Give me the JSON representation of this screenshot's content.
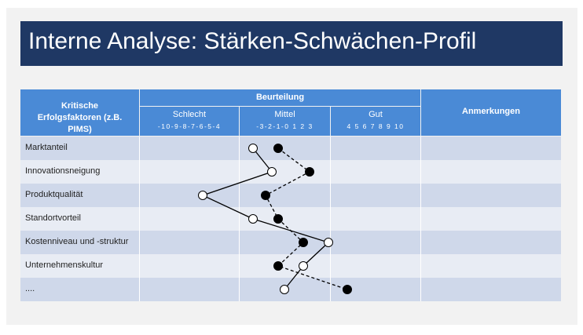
{
  "title": "Interne Analyse: Stärken-Schwächen-Profil",
  "table": {
    "factor_header": "Kritische Erfolgsfaktoren (z.B. PIMS)",
    "rating_header": "Beurteilung",
    "notes_header": "Anmerkungen",
    "scale_groups": [
      {
        "label": "Schlecht",
        "scale": "-10-9-8-7-6-5-4"
      },
      {
        "label": "Mittel",
        "scale": "-3-2-1-0 1 2 3"
      },
      {
        "label": "Gut",
        "scale": "4 5 6 7 8 9 10"
      }
    ],
    "rows": [
      {
        "label": "Marktanteil"
      },
      {
        "label": "Innovationsneigung"
      },
      {
        "label": "Produktqualität"
      },
      {
        "label": "Standortvorteil"
      },
      {
        "label": "Kostenniveau und -struktur"
      },
      {
        "label": "Unternehmenskultur"
      },
      {
        "label": "...."
      }
    ]
  },
  "chart_data": {
    "type": "line",
    "x_range": [
      -10,
      10
    ],
    "categories": [
      "Marktanteil",
      "Innovationsneigung",
      "Produktqualität",
      "Standortvorteil",
      "Kostenniveau und -struktur",
      "Unternehmenskultur",
      "...."
    ],
    "series": [
      {
        "marker": "open-circle",
        "line": "solid",
        "color": "#000000",
        "values": [
          -1.5,
          0,
          -5.5,
          -1.5,
          4.5,
          2.5,
          1
        ]
      },
      {
        "marker": "filled-circle",
        "line": "dashed",
        "color": "#000000",
        "values": [
          0.5,
          3,
          -0.5,
          0.5,
          2.5,
          0.5,
          6
        ]
      }
    ]
  }
}
